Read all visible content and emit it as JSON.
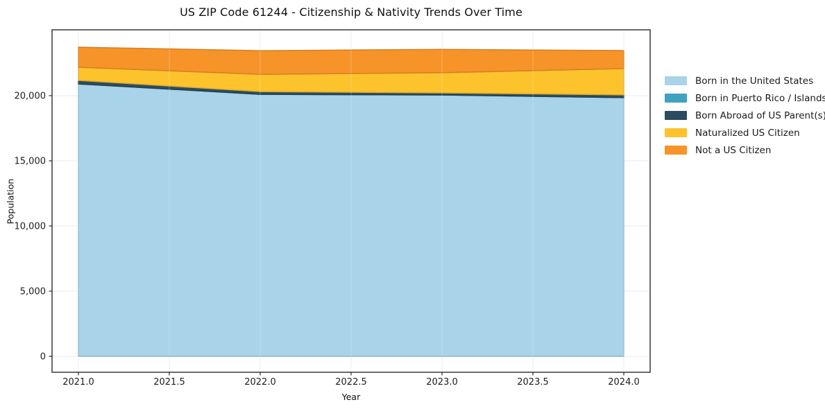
{
  "title": "US ZIP Code 61244 - Citizenship & Nativity Trends Over Time",
  "chart_data": {
    "type": "area",
    "stacked": true,
    "title": "US ZIP Code 61244 - Citizenship & Nativity Trends Over Time",
    "xlabel": "Year",
    "ylabel": "Population",
    "x": [
      2021,
      2022,
      2023,
      2024
    ],
    "series": [
      {
        "name": "Born in the United States",
        "color": "#a8d3e8",
        "values": [
          20900,
          20100,
          20050,
          19850
        ]
      },
      {
        "name": "Born in Puerto Rico / Islands",
        "color": "#41a1c1",
        "values": [
          0,
          0,
          0,
          0
        ]
      },
      {
        "name": "Born Abroad of US Parent(s)",
        "color": "#2b4b60",
        "values": [
          270,
          210,
          160,
          210
        ]
      },
      {
        "name": "Naturalized US Citizen",
        "color": "#fcc32d",
        "values": [
          1010,
          1330,
          1550,
          2020
        ]
      },
      {
        "name": "Not a US Citizen",
        "color": "#f79429",
        "values": [
          1540,
          1810,
          1790,
          1380
        ]
      }
    ],
    "stack_totals": [
      23720,
      23450,
      23550,
      23460
    ],
    "x_ticks": {
      "values": [
        2021.0,
        2021.5,
        2022.0,
        2022.5,
        2023.0,
        2023.5,
        2024.0
      ],
      "labels": [
        "2021.0",
        "2021.5",
        "2022.0",
        "2022.5",
        "2023.0",
        "2023.5",
        "2024.0"
      ]
    },
    "y_ticks": {
      "values": [
        0,
        5000,
        10000,
        15000,
        20000
      ],
      "labels": [
        "0",
        "5,000",
        "10,000",
        "15,000",
        "20,000"
      ]
    },
    "xlim": [
      2020.855,
      2024.145
    ],
    "ylim": [
      -1223,
      25053
    ],
    "grid": true,
    "legend_position": "right",
    "colors": {
      "grid": "#e8e8e8",
      "spine": "#1a1a1a",
      "tick_text": "#1c1c1c",
      "background": "#ffffff"
    }
  }
}
